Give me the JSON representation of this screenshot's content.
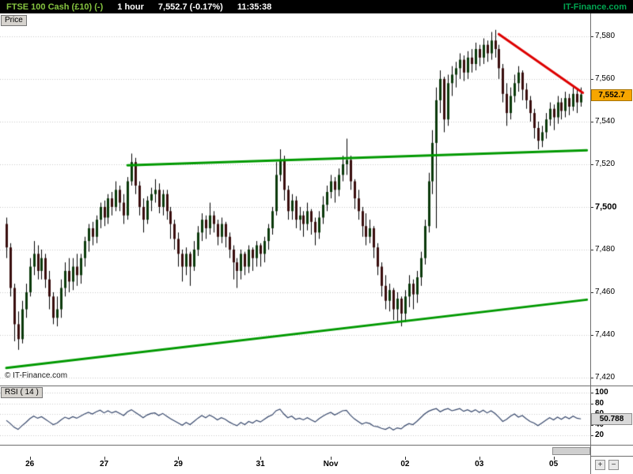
{
  "header": {
    "symbol": "FTSE 100 Cash (£10) (-)",
    "timeframe": "1 hour",
    "last_price": "7,552.7",
    "change": "(-0.17%)",
    "time": "11:35:38",
    "brand": "IT-Finance.com"
  },
  "theme": {
    "header_bg": "#000000",
    "symbol_color": "#86C440",
    "header_text": "#FFFFFF",
    "brand_color": "#00A651",
    "price_badge_bg": "#F7A600",
    "rsi_badge_bg": "#D9D9D9"
  },
  "price_panel": {
    "tab_label": "Price",
    "watermark": "© IT-Finance.com",
    "badge_label": "7,552.7",
    "axis_ticks": [
      {
        "label": "7,580",
        "value": 7580,
        "bold": false
      },
      {
        "label": "7,560",
        "value": 7560,
        "bold": false
      },
      {
        "label": "7,540",
        "value": 7540,
        "bold": false
      },
      {
        "label": "7,520",
        "value": 7520,
        "bold": false
      },
      {
        "label": "7,500",
        "value": 7500,
        "bold": true
      },
      {
        "label": "7,480",
        "value": 7480,
        "bold": false
      },
      {
        "label": "7,460",
        "value": 7460,
        "bold": false
      },
      {
        "label": "7,440",
        "value": 7440,
        "bold": false
      },
      {
        "label": "7,420",
        "value": 7420,
        "bold": false
      }
    ]
  },
  "rsi_panel": {
    "tab_label": "RSI ( 14 )",
    "badge_label": "50.788",
    "axis_ticks": [
      {
        "label": "100",
        "value": 100
      },
      {
        "label": "80",
        "value": 80
      },
      {
        "label": "60",
        "value": 60
      },
      {
        "label": "40",
        "value": 40
      },
      {
        "label": "20",
        "value": 20
      }
    ]
  },
  "controls": {
    "zoom_in": "+",
    "zoom_out": "−"
  },
  "chart_data": {
    "type": "candlestick",
    "title": "FTSE 100 Cash (£10)",
    "timeframe": "1 hour",
    "last_price_value": 7552.7,
    "price_ylim": [
      7415.9,
      7590.7
    ],
    "layout": {
      "x0": 8,
      "bar_step": 4.94,
      "candle_width": 3,
      "grid": "horizontal-dotted",
      "legend": "none"
    },
    "colors": {
      "up": "#0b3a0b",
      "down": "#3a0e0e",
      "wick": "#000000",
      "grid": "#c9c9c9",
      "rsi_line": "#36476b"
    },
    "x_labels": [
      {
        "bar": 6,
        "text": "26"
      },
      {
        "bar": 25,
        "text": "27"
      },
      {
        "bar": 44,
        "text": "29"
      },
      {
        "bar": 65,
        "text": "31"
      },
      {
        "bar": 83,
        "text": "Nov"
      },
      {
        "bar": 102,
        "text": "02"
      },
      {
        "bar": 121,
        "text": "03"
      },
      {
        "bar": 140,
        "text": "05"
      }
    ],
    "trendlines": [
      {
        "name": "rising-support-upper",
        "color": "#009900",
        "width": 3,
        "from_bar": 31,
        "from_price": 7519.5,
        "to_bar": 148.5,
        "to_price": 7526.5
      },
      {
        "name": "rising-support-lower",
        "color": "#009900",
        "width": 3,
        "from_bar": 0,
        "from_price": 7424.5,
        "to_bar": 148.5,
        "to_price": 7456.5
      },
      {
        "name": "falling-resistance",
        "color": "#dd0000",
        "width": 3,
        "from_bar": 126,
        "from_price": 7581,
        "to_bar": 147.5,
        "to_price": 7553.5
      }
    ],
    "candles": [
      [
        7492,
        7495,
        7476,
        7481
      ],
      [
        7481,
        7483,
        7458,
        7462
      ],
      [
        7462,
        7464,
        7437,
        7445
      ],
      [
        7445,
        7451,
        7433,
        7438
      ],
      [
        7438,
        7456,
        7436,
        7452
      ],
      [
        7452,
        7464,
        7448,
        7460
      ],
      [
        7460,
        7476,
        7458,
        7472
      ],
      [
        7472,
        7484,
        7468,
        7478
      ],
      [
        7478,
        7482,
        7466,
        7470
      ],
      [
        7470,
        7480,
        7466,
        7476
      ],
      [
        7476,
        7478,
        7462,
        7466
      ],
      [
        7466,
        7470,
        7452,
        7458
      ],
      [
        7458,
        7460,
        7445,
        7448
      ],
      [
        7448,
        7458,
        7444,
        7452
      ],
      [
        7452,
        7466,
        7448,
        7462
      ],
      [
        7462,
        7474,
        7458,
        7470
      ],
      [
        7470,
        7476,
        7460,
        7465
      ],
      [
        7465,
        7476,
        7461,
        7472
      ],
      [
        7472,
        7478,
        7463,
        7468
      ],
      [
        7468,
        7478,
        7464,
        7476
      ],
      [
        7476,
        7486,
        7472,
        7484
      ],
      [
        7484,
        7492,
        7479,
        7490
      ],
      [
        7490,
        7493,
        7482,
        7486
      ],
      [
        7486,
        7496,
        7483,
        7494
      ],
      [
        7494,
        7502,
        7490,
        7500
      ],
      [
        7500,
        7503,
        7491,
        7495
      ],
      [
        7495,
        7506,
        7492,
        7504
      ],
      [
        7504,
        7507,
        7496,
        7500
      ],
      [
        7500,
        7512,
        7498,
        7508
      ],
      [
        7508,
        7510,
        7498,
        7502
      ],
      [
        7502,
        7506,
        7492,
        7496
      ],
      [
        7496,
        7514,
        7494,
        7512
      ],
      [
        7512,
        7525,
        7510,
        7521
      ],
      [
        7521,
        7523,
        7506,
        7510
      ],
      [
        7510,
        7512,
        7496,
        7500
      ],
      [
        7500,
        7504,
        7488,
        7494
      ],
      [
        7494,
        7505,
        7492,
        7503
      ],
      [
        7503,
        7509,
        7498,
        7506
      ],
      [
        7506,
        7513,
        7502,
        7508
      ],
      [
        7508,
        7511,
        7497,
        7500
      ],
      [
        7500,
        7508,
        7496,
        7506
      ],
      [
        7506,
        7508,
        7494,
        7498
      ],
      [
        7498,
        7500,
        7485,
        7492
      ],
      [
        7492,
        7494,
        7480,
        7485
      ],
      [
        7485,
        7488,
        7472,
        7478
      ],
      [
        7478,
        7480,
        7465,
        7472
      ],
      [
        7472,
        7481,
        7468,
        7478
      ],
      [
        7478,
        7479,
        7463,
        7472
      ],
      [
        7472,
        7484,
        7470,
        7480
      ],
      [
        7480,
        7491,
        7477,
        7488
      ],
      [
        7488,
        7497,
        7484,
        7494
      ],
      [
        7494,
        7496,
        7485,
        7490
      ],
      [
        7490,
        7502,
        7487,
        7496
      ],
      [
        7496,
        7498,
        7488,
        7492
      ],
      [
        7492,
        7494,
        7482,
        7486
      ],
      [
        7486,
        7495,
        7483,
        7492
      ],
      [
        7492,
        7493,
        7481,
        7486
      ],
      [
        7486,
        7488,
        7476,
        7480
      ],
      [
        7480,
        7482,
        7466,
        7474
      ],
      [
        7474,
        7476,
        7462,
        7470
      ],
      [
        7470,
        7480,
        7466,
        7478
      ],
      [
        7478,
        7479,
        7468,
        7472
      ],
      [
        7472,
        7482,
        7469,
        7480
      ],
      [
        7480,
        7481,
        7470,
        7476
      ],
      [
        7476,
        7484,
        7472,
        7482
      ],
      [
        7482,
        7483,
        7472,
        7478
      ],
      [
        7478,
        7486,
        7474,
        7484
      ],
      [
        7484,
        7492,
        7480,
        7490
      ],
      [
        7490,
        7500,
        7487,
        7498
      ],
      [
        7498,
        7521,
        7496,
        7515
      ],
      [
        7515,
        7527,
        7512,
        7522
      ],
      [
        7522,
        7524,
        7503,
        7508
      ],
      [
        7508,
        7510,
        7494,
        7498
      ],
      [
        7498,
        7506,
        7494,
        7503
      ],
      [
        7503,
        7505,
        7490,
        7494
      ],
      [
        7494,
        7500,
        7489,
        7496
      ],
      [
        7496,
        7498,
        7486,
        7492
      ],
      [
        7492,
        7502,
        7489,
        7498
      ],
      [
        7498,
        7499,
        7487,
        7493
      ],
      [
        7493,
        7495,
        7482,
        7488
      ],
      [
        7488,
        7498,
        7485,
        7495
      ],
      [
        7495,
        7505,
        7492,
        7501
      ],
      [
        7501,
        7510,
        7498,
        7507
      ],
      [
        7507,
        7515,
        7504,
        7512
      ],
      [
        7512,
        7514,
        7502,
        7508
      ],
      [
        7508,
        7518,
        7505,
        7515
      ],
      [
        7515,
        7524,
        7512,
        7520
      ],
      [
        7520,
        7532,
        7515,
        7522
      ],
      [
        7522,
        7524,
        7508,
        7512
      ],
      [
        7512,
        7513,
        7499,
        7504
      ],
      [
        7504,
        7508,
        7494,
        7498
      ],
      [
        7498,
        7500,
        7486,
        7491
      ],
      [
        7491,
        7497,
        7482,
        7486
      ],
      [
        7486,
        7494,
        7483,
        7490
      ],
      [
        7490,
        7491,
        7476,
        7481
      ],
      [
        7481,
        7483,
        7468,
        7472
      ],
      [
        7472,
        7474,
        7458,
        7463
      ],
      [
        7463,
        7468,
        7452,
        7456
      ],
      [
        7456,
        7464,
        7451,
        7461
      ],
      [
        7461,
        7462,
        7447,
        7452
      ],
      [
        7452,
        7460,
        7446,
        7457
      ],
      [
        7457,
        7458,
        7444,
        7450
      ],
      [
        7450,
        7461,
        7446,
        7458
      ],
      [
        7458,
        7468,
        7453,
        7464
      ],
      [
        7464,
        7466,
        7452,
        7459
      ],
      [
        7459,
        7470,
        7455,
        7467
      ],
      [
        7467,
        7479,
        7463,
        7476
      ],
      [
        7476,
        7494,
        7473,
        7491
      ],
      [
        7491,
        7516,
        7488,
        7512
      ],
      [
        7512,
        7536,
        7506,
        7530
      ],
      [
        7530,
        7556,
        7490,
        7550
      ],
      [
        7550,
        7564,
        7544,
        7560
      ],
      [
        7560,
        7561,
        7535,
        7541
      ],
      [
        7541,
        7562,
        7538,
        7558
      ],
      [
        7558,
        7566,
        7552,
        7562
      ],
      [
        7562,
        7568,
        7556,
        7565
      ],
      [
        7565,
        7572,
        7560,
        7569
      ],
      [
        7569,
        7571,
        7559,
        7563
      ],
      [
        7563,
        7573,
        7560,
        7570
      ],
      [
        7570,
        7574,
        7563,
        7567
      ],
      [
        7567,
        7577,
        7564,
        7574
      ],
      [
        7574,
        7576,
        7566,
        7570
      ],
      [
        7570,
        7579,
        7567,
        7576
      ],
      [
        7576,
        7578,
        7568,
        7572
      ],
      [
        7572,
        7582,
        7569,
        7578
      ],
      [
        7578,
        7583,
        7570,
        7574
      ],
      [
        7574,
        7576,
        7560,
        7565
      ],
      [
        7565,
        7567,
        7549,
        7553
      ],
      [
        7553,
        7558,
        7538,
        7544
      ],
      [
        7544,
        7556,
        7541,
        7552
      ],
      [
        7552,
        7562,
        7549,
        7558
      ],
      [
        7558,
        7566,
        7554,
        7563
      ],
      [
        7563,
        7564,
        7550,
        7555
      ],
      [
        7555,
        7558,
        7546,
        7550
      ],
      [
        7550,
        7552,
        7540,
        7544
      ],
      [
        7544,
        7546,
        7532,
        7537
      ],
      [
        7537,
        7540,
        7527,
        7531
      ],
      [
        7531,
        7538,
        7528,
        7535
      ],
      [
        7535,
        7544,
        7532,
        7541
      ],
      [
        7541,
        7549,
        7538,
        7546
      ],
      [
        7546,
        7548,
        7536,
        7542
      ],
      [
        7542,
        7552,
        7539,
        7549
      ],
      [
        7549,
        7551,
        7541,
        7545
      ],
      [
        7545,
        7554,
        7542,
        7551
      ],
      [
        7551,
        7553,
        7543,
        7547
      ],
      [
        7547,
        7556,
        7545,
        7553
      ],
      [
        7553,
        7555,
        7544,
        7549
      ],
      [
        7549,
        7556,
        7547,
        7552.7
      ]
    ],
    "rsi": {
      "period": 14,
      "last": 50.788,
      "ylim": [
        2.2,
        111.9
      ],
      "values": [
        48,
        42,
        35,
        31,
        38,
        44,
        51,
        56,
        52,
        55,
        50,
        45,
        40,
        43,
        49,
        54,
        51,
        55,
        52,
        56,
        60,
        63,
        60,
        64,
        67,
        62,
        66,
        62,
        65,
        61,
        57,
        64,
        68,
        63,
        58,
        53,
        58,
        61,
        62,
        57,
        61,
        56,
        51,
        47,
        43,
        39,
        44,
        40,
        46,
        52,
        57,
        53,
        58,
        54,
        49,
        53,
        50,
        45,
        41,
        38,
        44,
        40,
        46,
        43,
        48,
        45,
        50,
        55,
        58,
        66,
        69,
        60,
        53,
        56,
        50,
        52,
        49,
        53,
        49,
        45,
        51,
        56,
        60,
        63,
        58,
        62,
        66,
        67,
        58,
        51,
        46,
        41,
        44,
        42,
        37,
        36,
        33,
        31,
        35,
        30,
        34,
        32,
        38,
        42,
        40,
        46,
        53,
        60,
        65,
        68,
        70,
        64,
        68,
        70,
        66,
        68,
        70,
        65,
        68,
        64,
        68,
        63,
        67,
        62,
        66,
        61,
        54,
        46,
        50,
        56,
        60,
        54,
        57,
        51,
        46,
        43,
        38,
        43,
        48,
        53,
        49,
        54,
        50,
        55,
        51,
        56,
        52,
        50.788
      ]
    }
  }
}
